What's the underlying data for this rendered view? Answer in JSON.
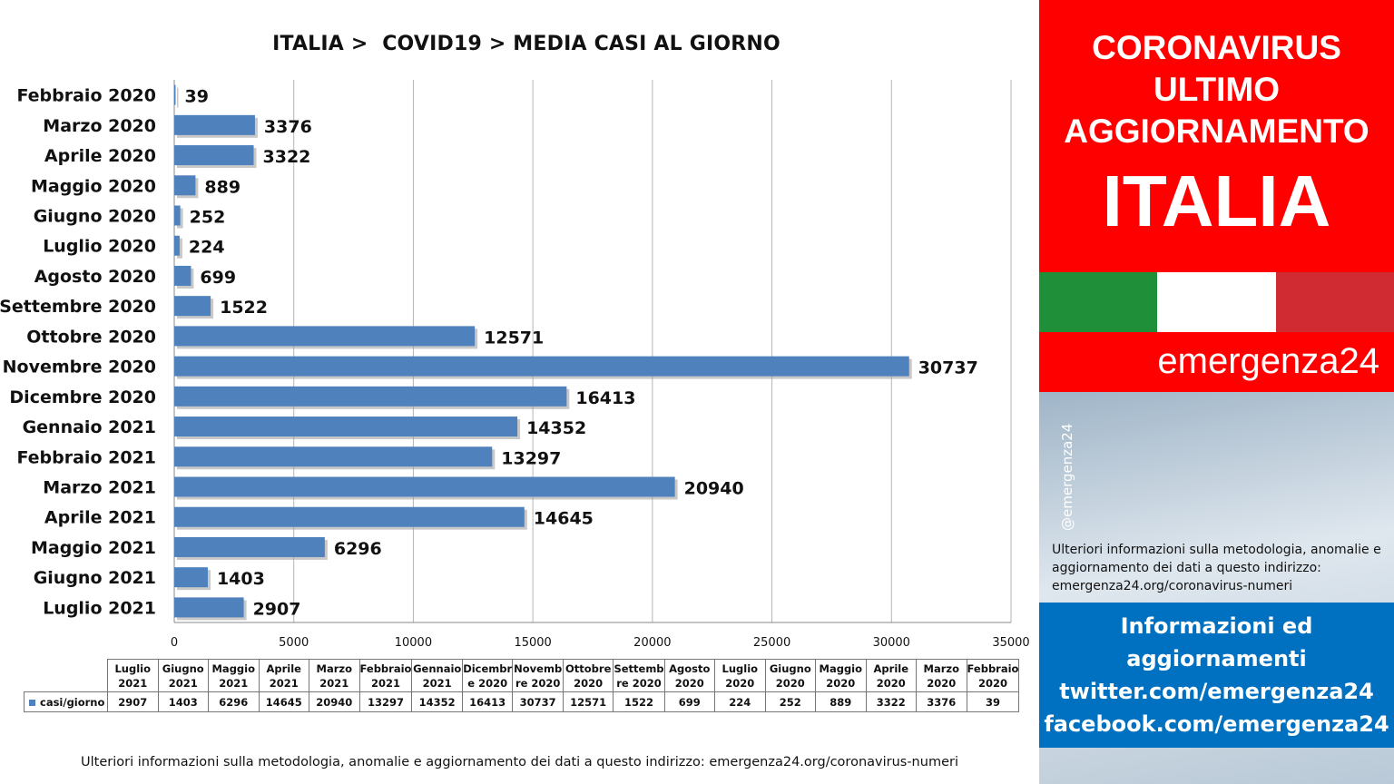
{
  "chart_data": {
    "type": "bar",
    "orientation": "horizontal",
    "title": "ITALIA >  COVID19 > MEDIA CASI AL GIORNO",
    "categories": [
      "Febbraio 2020",
      "Marzo 2020",
      "Aprile 2020",
      "Maggio 2020",
      "Giugno 2020",
      "Luglio 2020",
      "Agosto 2020",
      "Settembre 2020",
      "Ottobre 2020",
      "Novembre 2020",
      "Dicembre 2020",
      "Gennaio 2021",
      "Febbraio 2021",
      "Marzo 2021",
      "Aprile 2021",
      "Maggio 2021",
      "Giugno 2021",
      "Luglio 2021"
    ],
    "series": [
      {
        "name": "casi/giorno",
        "values": [
          39,
          3376,
          3322,
          889,
          252,
          224,
          699,
          1522,
          12571,
          30737,
          16413,
          14352,
          13297,
          20940,
          14645,
          6296,
          1403,
          2907
        ]
      }
    ],
    "xlim": [
      0,
      35000
    ],
    "ticks": [
      "0",
      "5000",
      "10000",
      "15000",
      "20000",
      "25000",
      "30000",
      "35000"
    ],
    "grid": true,
    "bar_color": "#4f81bd",
    "data_labels": true,
    "table": {
      "series_label": "casi/giorno",
      "headers": [
        [
          "Luglio",
          "2021"
        ],
        [
          "Giugno",
          "2021"
        ],
        [
          "Maggio",
          "2021"
        ],
        [
          "Aprile",
          "2021"
        ],
        [
          "Marzo",
          "2021"
        ],
        [
          "Febbraio",
          "2021"
        ],
        [
          "Gennaio",
          "2021"
        ],
        [
          "Dicembr",
          "e 2020"
        ],
        [
          "Novemb",
          "re 2020"
        ],
        [
          "Ottobre",
          "2020"
        ],
        [
          "Settemb",
          "re 2020"
        ],
        [
          "Agosto",
          "2020"
        ],
        [
          "Luglio",
          "2020"
        ],
        [
          "Giugno",
          "2020"
        ],
        [
          "Maggio",
          "2020"
        ],
        [
          "Aprile",
          "2020"
        ],
        [
          "Marzo",
          "2020"
        ],
        [
          "Febbraio",
          "2020"
        ]
      ],
      "values": [
        "2907",
        "1403",
        "6296",
        "14645",
        "20940",
        "13297",
        "14352",
        "16413",
        "30737",
        "12571",
        "1522",
        "699",
        "224",
        "252",
        "889",
        "3322",
        "3376",
        "39"
      ]
    }
  },
  "footer_text": "Ulteriori informazioni sulla metodologia, anomalie e aggiornamento dei dati a questo indirizzo: emergenza24.org/coronavirus-numeri",
  "side_panel": {
    "banner_line1": "CORONAVIRUS",
    "banner_line2": "ULTIMO",
    "banner_line3": "AGGIORNAMENTO",
    "banner_country": "ITALIA",
    "brand_name": "emergenza24",
    "handle": "@emergenza24",
    "info_text": "Ulteriori informazioni sulla metodologia, anomalie e aggiornamento dei dati a questo indirizzo: emergenza24.org/coronavirus-numeri",
    "social_line1": "Informazioni ed",
    "social_line2": "aggiornamenti",
    "social_line3": "twitter.com/emergenza24",
    "social_line4": "facebook.com/emergenza24"
  },
  "colors": {
    "banner_red": "#ff0000",
    "flag_green": "#1f8f3a",
    "flag_white": "#ffffff",
    "flag_red": "#d02a33",
    "social_blue": "#0070c0",
    "bar_blue": "#4f81bd"
  }
}
